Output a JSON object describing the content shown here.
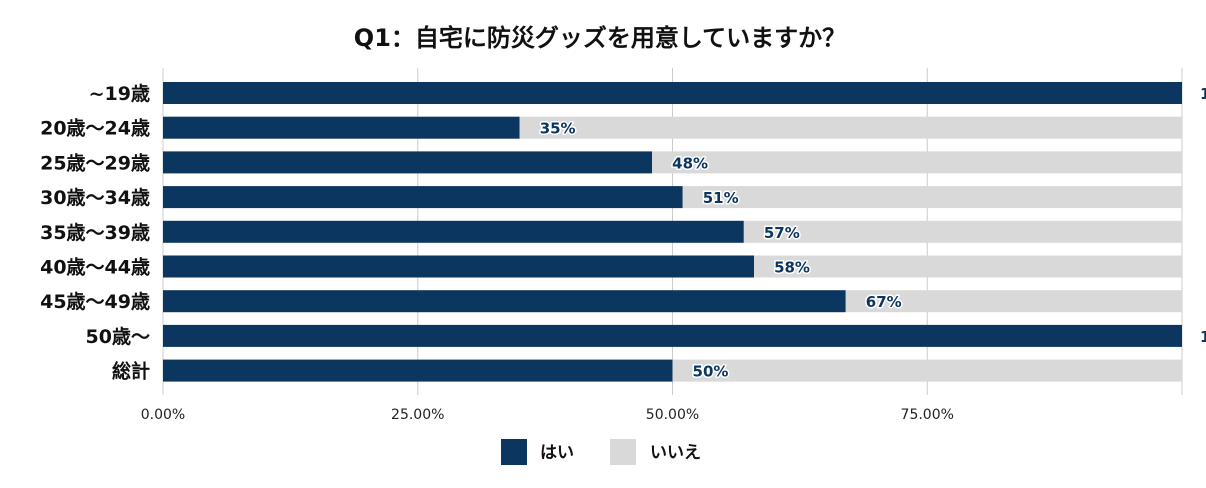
{
  "chart_data": {
    "type": "bar",
    "orientation": "horizontal",
    "stacked": true,
    "title": "Q1：自宅に防災グッズを用意していますか？",
    "categories": [
      "~19歳",
      "20歳〜24歳",
      "25歳〜29歳",
      "30歳〜34歳",
      "35歳〜39歳",
      "40歳〜44歳",
      "45歳〜49歳",
      "50歳〜",
      "総計"
    ],
    "series": [
      {
        "name": "はい",
        "values": [
          100,
          35,
          48,
          51,
          57,
          58,
          67,
          100,
          50
        ],
        "color": "#0b3660"
      },
      {
        "name": "いいえ",
        "values": [
          0,
          65,
          52,
          49,
          43,
          42,
          33,
          0,
          50
        ],
        "color": "#d9d9d9"
      }
    ],
    "data_labels": [
      "1",
      "35%",
      "48%",
      "51%",
      "57%",
      "58%",
      "67%",
      "1",
      "50%"
    ],
    "data_label_color": "#0b3660",
    "x_ticks": [
      "0.00%",
      "25.00%",
      "50.00%",
      "75.00%"
    ],
    "xlim": [
      0,
      100
    ],
    "grid": true,
    "legend_position": "bottom"
  }
}
